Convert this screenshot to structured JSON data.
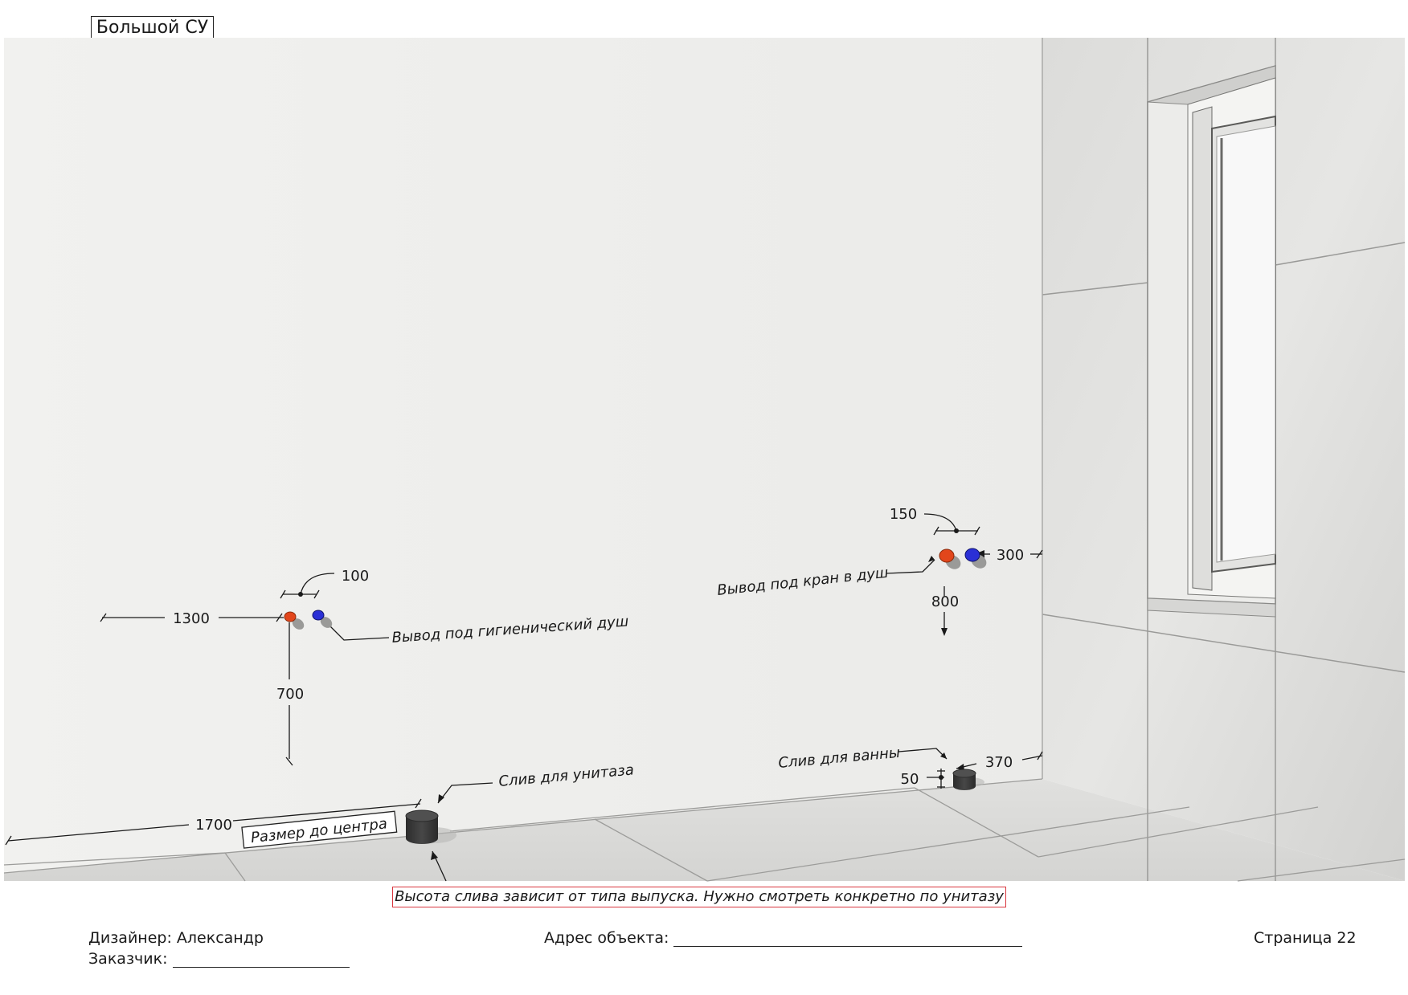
{
  "sheet": {
    "title": "Большой СУ"
  },
  "annotations": {
    "hygienic_shower": "Вывод под гигиенический душ",
    "shower_tap": "Вывод под кран  в душ",
    "toilet_drain": "Слив для унитаза",
    "bath_drain": "Слив для ванны",
    "center_note": "Размер до центра"
  },
  "dimensions": {
    "d1300": "1300",
    "d100": "100",
    "d700": "700",
    "d1700": "1700",
    "d150": "150",
    "d300": "300",
    "d800": "800",
    "d370": "370",
    "d50": "50"
  },
  "note": "Высота слива зависит от типа выпуска. Нужно смотреть конкретно по унитазу",
  "footer": {
    "designer": "Дизайнер: Александр",
    "customer": "Заказчик:",
    "address": "Адрес объекта:",
    "page": "Страница 22"
  },
  "colors": {
    "hot": "#e2461b",
    "cold": "#2a2fd6",
    "drain": "#3a3a3a",
    "wall": "#efefed",
    "tile": "#d8d8d6",
    "note_border": "#d9363e"
  }
}
